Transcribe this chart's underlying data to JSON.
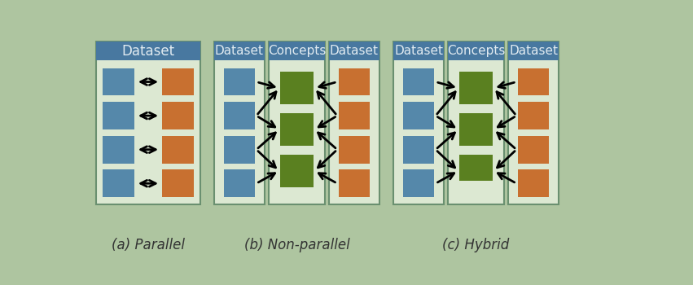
{
  "bg_color": "#aec5a0",
  "panel_bg": "#dce8d2",
  "panel_border": "#6a9070",
  "blue_color": "#5588aa",
  "orange_color": "#c87030",
  "green_color": "#5a8020",
  "header_color": "#4878a0",
  "header_text_color": "#e0eaf0",
  "caption_fontsize": 12,
  "captions": [
    "(a) Parallel",
    "(b) Non-parallel",
    "(c) Hybrid"
  ],
  "header_label": "Dataset",
  "concept_label": "Concepts"
}
